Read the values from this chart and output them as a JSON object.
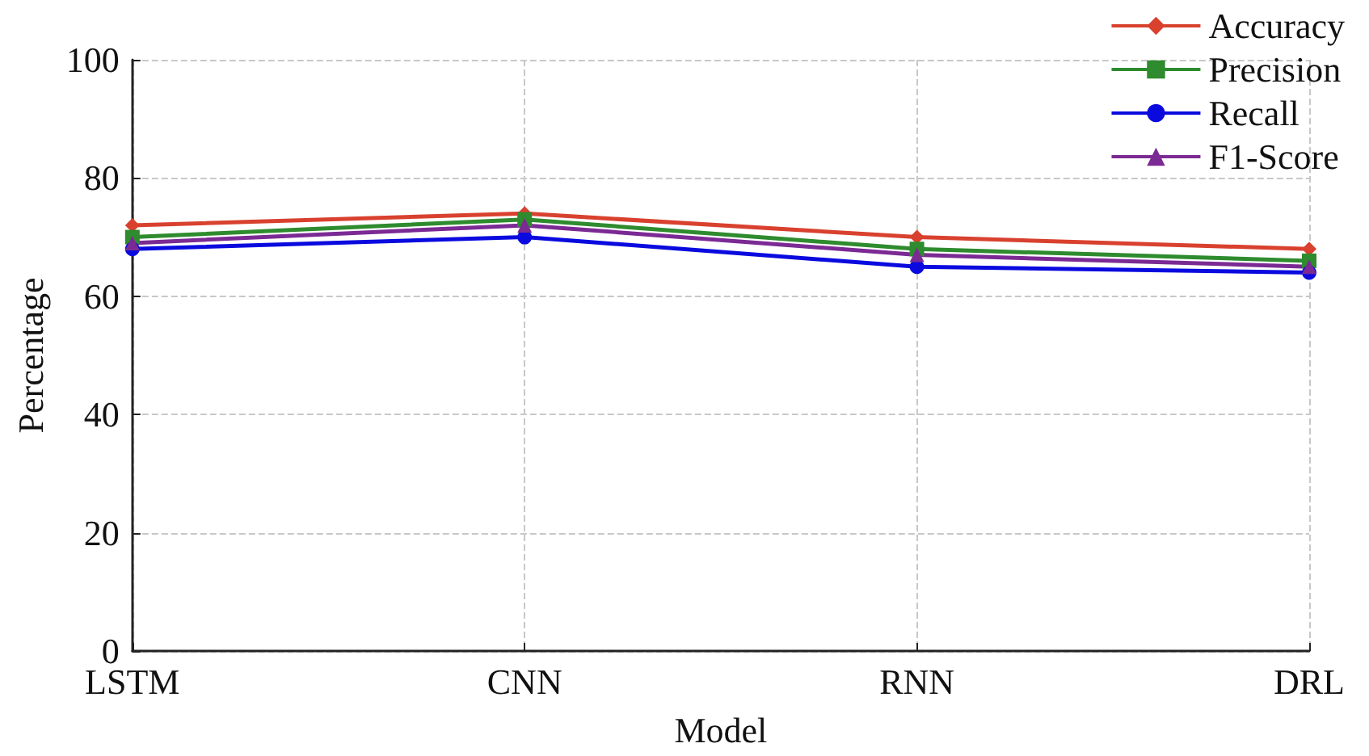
{
  "chart_data": {
    "type": "line",
    "xlabel": "Model",
    "ylabel": "Percentage",
    "categories": [
      "LSTM",
      "CNN",
      "RNN",
      "DRL"
    ],
    "series": [
      {
        "name": "Accuracy",
        "color": "#d9412f",
        "marker": "diamond",
        "values": [
          72,
          74,
          70,
          68
        ]
      },
      {
        "name": "Precision",
        "color": "#2e8b2e",
        "marker": "square",
        "values": [
          70,
          73,
          68,
          66
        ]
      },
      {
        "name": "Recall",
        "color": "#0a0adf",
        "marker": "circle",
        "values": [
          68,
          70,
          65,
          64
        ]
      },
      {
        "name": "F1-Score",
        "color": "#7b2a94",
        "marker": "triangle",
        "values": [
          69,
          72,
          67,
          65
        ]
      }
    ],
    "ylim": [
      0,
      100
    ],
    "yticks": [
      0,
      20,
      40,
      60,
      80,
      100
    ],
    "grid": true,
    "legend": "top right",
    "line_style": "solid"
  }
}
